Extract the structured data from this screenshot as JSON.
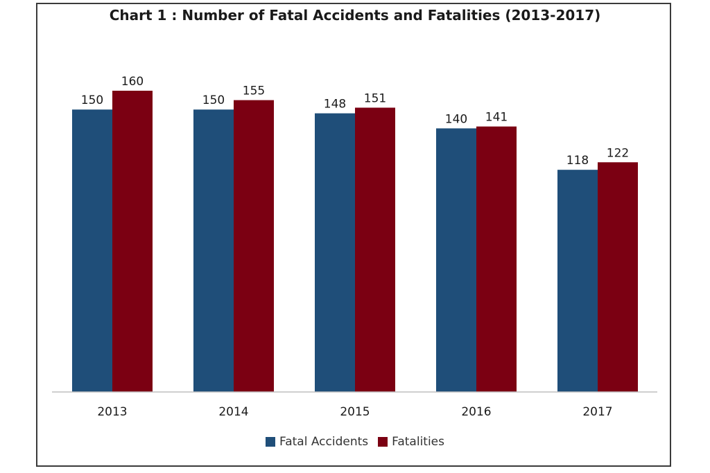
{
  "chart_data": {
    "type": "bar",
    "title": "Chart 1 : Number of Fatal Accidents and Fatalities (2013-2017)",
    "categories": [
      "2013",
      "2014",
      "2015",
      "2016",
      "2017"
    ],
    "series": [
      {
        "name": "Fatal Accidents",
        "values": [
          150,
          150,
          148,
          140,
          118
        ],
        "color": "#1f4e79"
      },
      {
        "name": "Fatalities",
        "values": [
          160,
          155,
          151,
          141,
          122
        ],
        "color": "#7b0012"
      }
    ],
    "ylim": [
      0,
      160
    ],
    "grid": false,
    "legend": "bottom"
  }
}
